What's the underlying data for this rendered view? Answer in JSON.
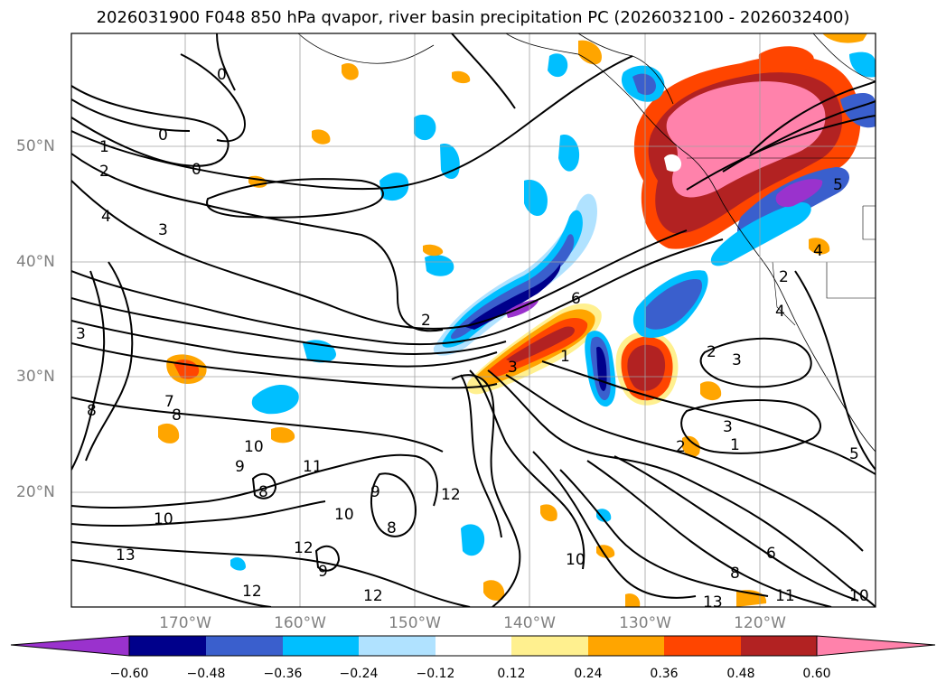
{
  "title": "2026031900 F048 850 hPa qvapor, river basin precipitation PC (2026032100 - 2026032400)",
  "lat_labels": [
    "50°N",
    "40°N",
    "30°N",
    "20°N"
  ],
  "lon_labels": [
    "170°W",
    "160°W",
    "150°W",
    "140°W",
    "130°W",
    "120°W"
  ],
  "colorbar": {
    "ticks": [
      "−0.60",
      "−0.48",
      "−0.36",
      "−0.24",
      "−0.12",
      "0.12",
      "0.24",
      "0.36",
      "0.48",
      "0.60"
    ],
    "colors": [
      "#9a32cd",
      "#00008b",
      "#3a5fcd",
      "#00bfff",
      "#b0e2ff",
      "#ffffff",
      "#fff08f",
      "#ffa500",
      "#ff4500",
      "#b22222",
      "#ff82ab"
    ]
  },
  "contour_labels": [
    "0",
    "0",
    "0",
    "1",
    "2",
    "3",
    "4",
    "2",
    "6",
    "5",
    "3",
    "2",
    "3",
    "1",
    "4",
    "2",
    "3",
    "5",
    "3",
    "2",
    "1",
    "7",
    "8",
    "8",
    "10",
    "9",
    "8",
    "11",
    "10",
    "9",
    "8",
    "12",
    "10",
    "12",
    "13",
    "12",
    "9",
    "10",
    "12",
    "13",
    "8",
    "6",
    "11",
    "10",
    "4"
  ],
  "colors": {
    "lat_lon_label": "#808080",
    "contour": "#000000",
    "grid": "#a0a0a0"
  }
}
